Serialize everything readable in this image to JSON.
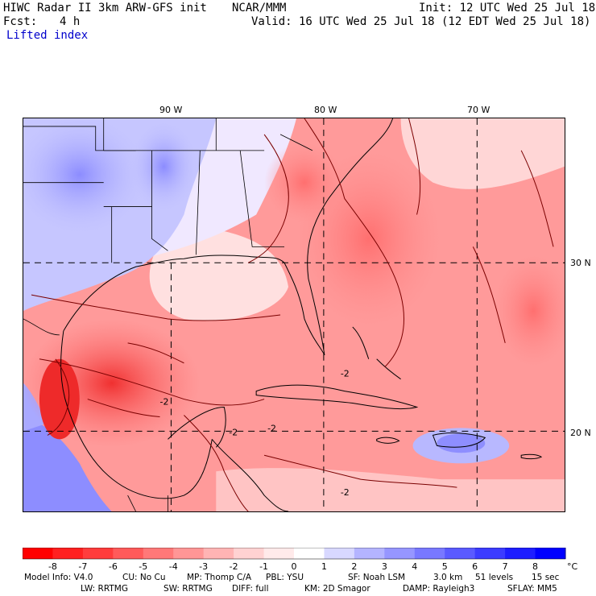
{
  "header": {
    "title": "HIWC Radar II 3km ARW-GFS init",
    "org": "NCAR/MMM",
    "init": "Init: 12 UTC Wed 25 Jul 18",
    "fcst_label": "Fcst:",
    "fcst_value": "4 h",
    "valid": "Valid: 16 UTC Wed 25 Jul 18 (12 EDT Wed 25 Jul 18)",
    "field": "Lifted index"
  },
  "map": {
    "lon_labels": [
      "90 W",
      "80 W",
      "70 W"
    ],
    "lat_labels": [
      "30 N",
      "20 N"
    ],
    "contour_labels": [
      "-2",
      "-2",
      "-2",
      "-2",
      "-2"
    ]
  },
  "legend": {
    "unit": "°C",
    "ticks": [
      "-8",
      "-7",
      "-6",
      "-5",
      "-4",
      "-3",
      "-2",
      "-1",
      "0",
      "1",
      "2",
      "3",
      "4",
      "5",
      "6",
      "7",
      "8"
    ],
    "colors": [
      "#ff0000",
      "#ff2020",
      "#ff3c3c",
      "#ff5a5a",
      "#ff7878",
      "#ff9696",
      "#ffb4b4",
      "#ffd2d2",
      "#ffeaea",
      "#ffffff",
      "#d8d8ff",
      "#b4b4ff",
      "#9696ff",
      "#7878ff",
      "#5a5aff",
      "#3c3cff",
      "#1e1eff",
      "#0000ff"
    ]
  },
  "footer": {
    "line1": [
      "Model Info: V4.0",
      "CU: No Cu",
      "MP: Thomp C/A",
      "PBL: YSU",
      "SF: Noah LSM",
      "3.0 km",
      "51 levels",
      "15 sec"
    ],
    "line2": [
      "LW: RRTMG",
      "SW: RRTMG",
      "DIFF: full",
      "KM: 2D Smagor",
      "DAMP: Rayleigh3",
      "SFLAY: MM5"
    ]
  }
}
